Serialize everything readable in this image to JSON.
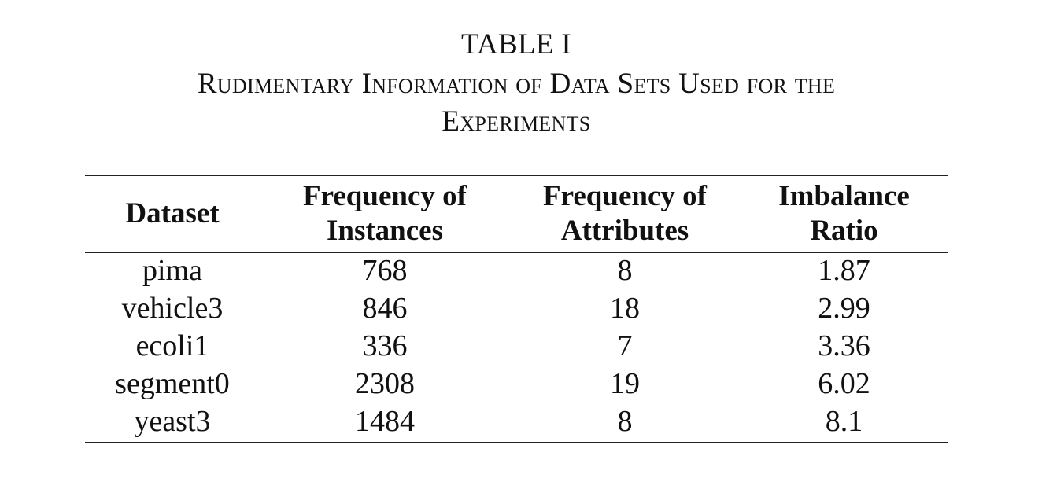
{
  "caption": {
    "label": "TABLE I",
    "title_line1": "Rudimentary Information of Data Sets Used for the",
    "title_line2": "Experiments"
  },
  "table": {
    "headers": [
      {
        "line1": "Dataset",
        "line2": ""
      },
      {
        "line1": "Frequency of",
        "line2": "Instances"
      },
      {
        "line1": "Frequency of",
        "line2": "Attributes"
      },
      {
        "line1": "Imbalance",
        "line2": "Ratio"
      }
    ],
    "rows": [
      [
        "pima",
        "768",
        "8",
        "1.87"
      ],
      [
        "vehicle3",
        "846",
        "18",
        "2.99"
      ],
      [
        "ecoli1",
        "336",
        "7",
        "3.36"
      ],
      [
        "segment0",
        "2308",
        "19",
        "6.02"
      ],
      [
        "yeast3",
        "1484",
        "8",
        "8.1"
      ]
    ]
  }
}
